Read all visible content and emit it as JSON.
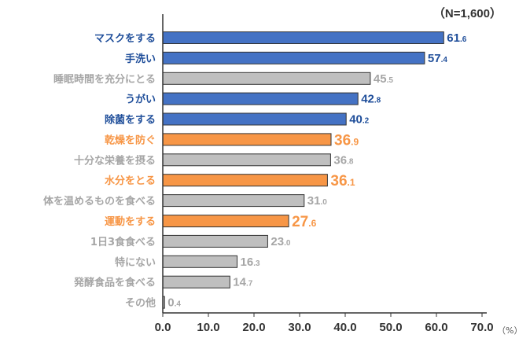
{
  "chart_data": {
    "type": "bar",
    "orientation": "horizontal",
    "note": "（N=1,600）",
    "unit": "（%）",
    "xlim": [
      0,
      70
    ],
    "ticks": [
      "0.0",
      "10.0",
      "20.0",
      "30.0",
      "40.0",
      "50.0",
      "60.0",
      "70.0"
    ],
    "grid": false,
    "colors": {
      "blue": "#4472c4",
      "orange": "#f79646",
      "gray": "#bfbfbf",
      "blue_text": "#1f4e9a",
      "orange_text": "#f79646",
      "gray_text": "#a6a6a6"
    },
    "bars": [
      {
        "label": "マスクをする",
        "value": 61.6,
        "int": "61",
        "dec": ".6",
        "color": "blue",
        "big": false
      },
      {
        "label": "手洗い",
        "value": 57.4,
        "int": "57",
        "dec": ".4",
        "color": "blue",
        "big": false
      },
      {
        "label": "睡眠時間を充分にとる",
        "value": 45.5,
        "int": "45",
        "dec": ".5",
        "color": "gray",
        "big": false
      },
      {
        "label": "うがい",
        "value": 42.8,
        "int": "42",
        "dec": ".8",
        "color": "blue",
        "big": false
      },
      {
        "label": "除菌をする",
        "value": 40.2,
        "int": "40",
        "dec": ".2",
        "color": "blue",
        "big": false
      },
      {
        "label": "乾燥を防ぐ",
        "value": 36.9,
        "int": "36",
        "dec": ".9",
        "color": "orange",
        "big": true
      },
      {
        "label": "十分な栄養を摂る",
        "value": 36.8,
        "int": "36",
        "dec": ".8",
        "color": "gray",
        "big": false
      },
      {
        "label": "水分をとる",
        "value": 36.1,
        "int": "36",
        "dec": ".1",
        "color": "orange",
        "big": true
      },
      {
        "label": "体を温めるものを食べる",
        "value": 31.0,
        "int": "31",
        "dec": ".0",
        "color": "gray",
        "big": false
      },
      {
        "label": "運動をする",
        "value": 27.6,
        "int": "27",
        "dec": ".6",
        "color": "orange",
        "big": true
      },
      {
        "label": "1日3食食べる",
        "value": 23.0,
        "int": "23",
        "dec": ".0",
        "color": "gray",
        "big": false
      },
      {
        "label": "特にない",
        "value": 16.3,
        "int": "16",
        "dec": ".3",
        "color": "gray",
        "big": false
      },
      {
        "label": "発酵食品を食べる",
        "value": 14.7,
        "int": "14",
        "dec": ".7",
        "color": "gray",
        "big": false
      },
      {
        "label": "その他",
        "value": 0.4,
        "int": "0",
        "dec": ".4",
        "color": "gray",
        "big": false
      }
    ]
  }
}
